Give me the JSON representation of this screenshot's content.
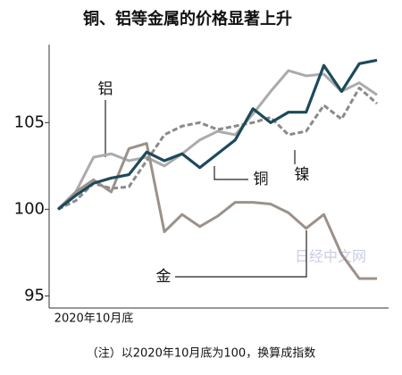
{
  "chart_data": {
    "type": "line",
    "title": "铜、铝等金属的价格显著上升",
    "note": "（注）以2020年10月底为100，换算成指数",
    "watermark": "日经中文网",
    "categories": [
      "2020年10月底",
      null,
      null,
      null,
      null,
      null,
      null,
      null,
      null,
      null,
      null,
      null,
      null,
      null,
      null,
      null,
      null,
      null,
      null
    ],
    "series": [
      {
        "name": "铝",
        "color": "#ababab",
        "dash": false,
        "values": [
          100,
          101,
          103,
          103.2,
          102.8,
          103,
          102.5,
          103.2,
          104,
          104.5,
          104.3,
          105.5,
          106.8,
          108,
          107.7,
          107.8,
          106.8,
          107.3,
          106.6
        ]
      },
      {
        "name": "镍",
        "color": "#8a8a8a",
        "dash": true,
        "values": [
          100,
          100.5,
          101.5,
          101.2,
          101.3,
          102.8,
          104.3,
          104.8,
          105,
          104.6,
          104.8,
          105,
          105.3,
          104.3,
          104.5,
          106,
          105.2,
          107,
          106.1
        ]
      },
      {
        "name": "金",
        "color": "#9c918a",
        "dash": false,
        "values": [
          100,
          101,
          101.7,
          101,
          103.5,
          103.8,
          98.7,
          99.7,
          99,
          99.6,
          100.4,
          100.4,
          100.3,
          99.8,
          98.9,
          99.7,
          97.4,
          96,
          96
        ]
      },
      {
        "name": "铜",
        "color": "#1d4a5a",
        "dash": false,
        "values": [
          100,
          100.8,
          101.5,
          101.8,
          102,
          103.3,
          102.8,
          103.2,
          102.4,
          103.2,
          104,
          105.8,
          105,
          105.6,
          105.6,
          108.3,
          106.8,
          108.4,
          108.6
        ]
      }
    ],
    "ylim": [
      94.3,
      109.5
    ],
    "yticks": [
      95,
      100,
      105
    ]
  }
}
